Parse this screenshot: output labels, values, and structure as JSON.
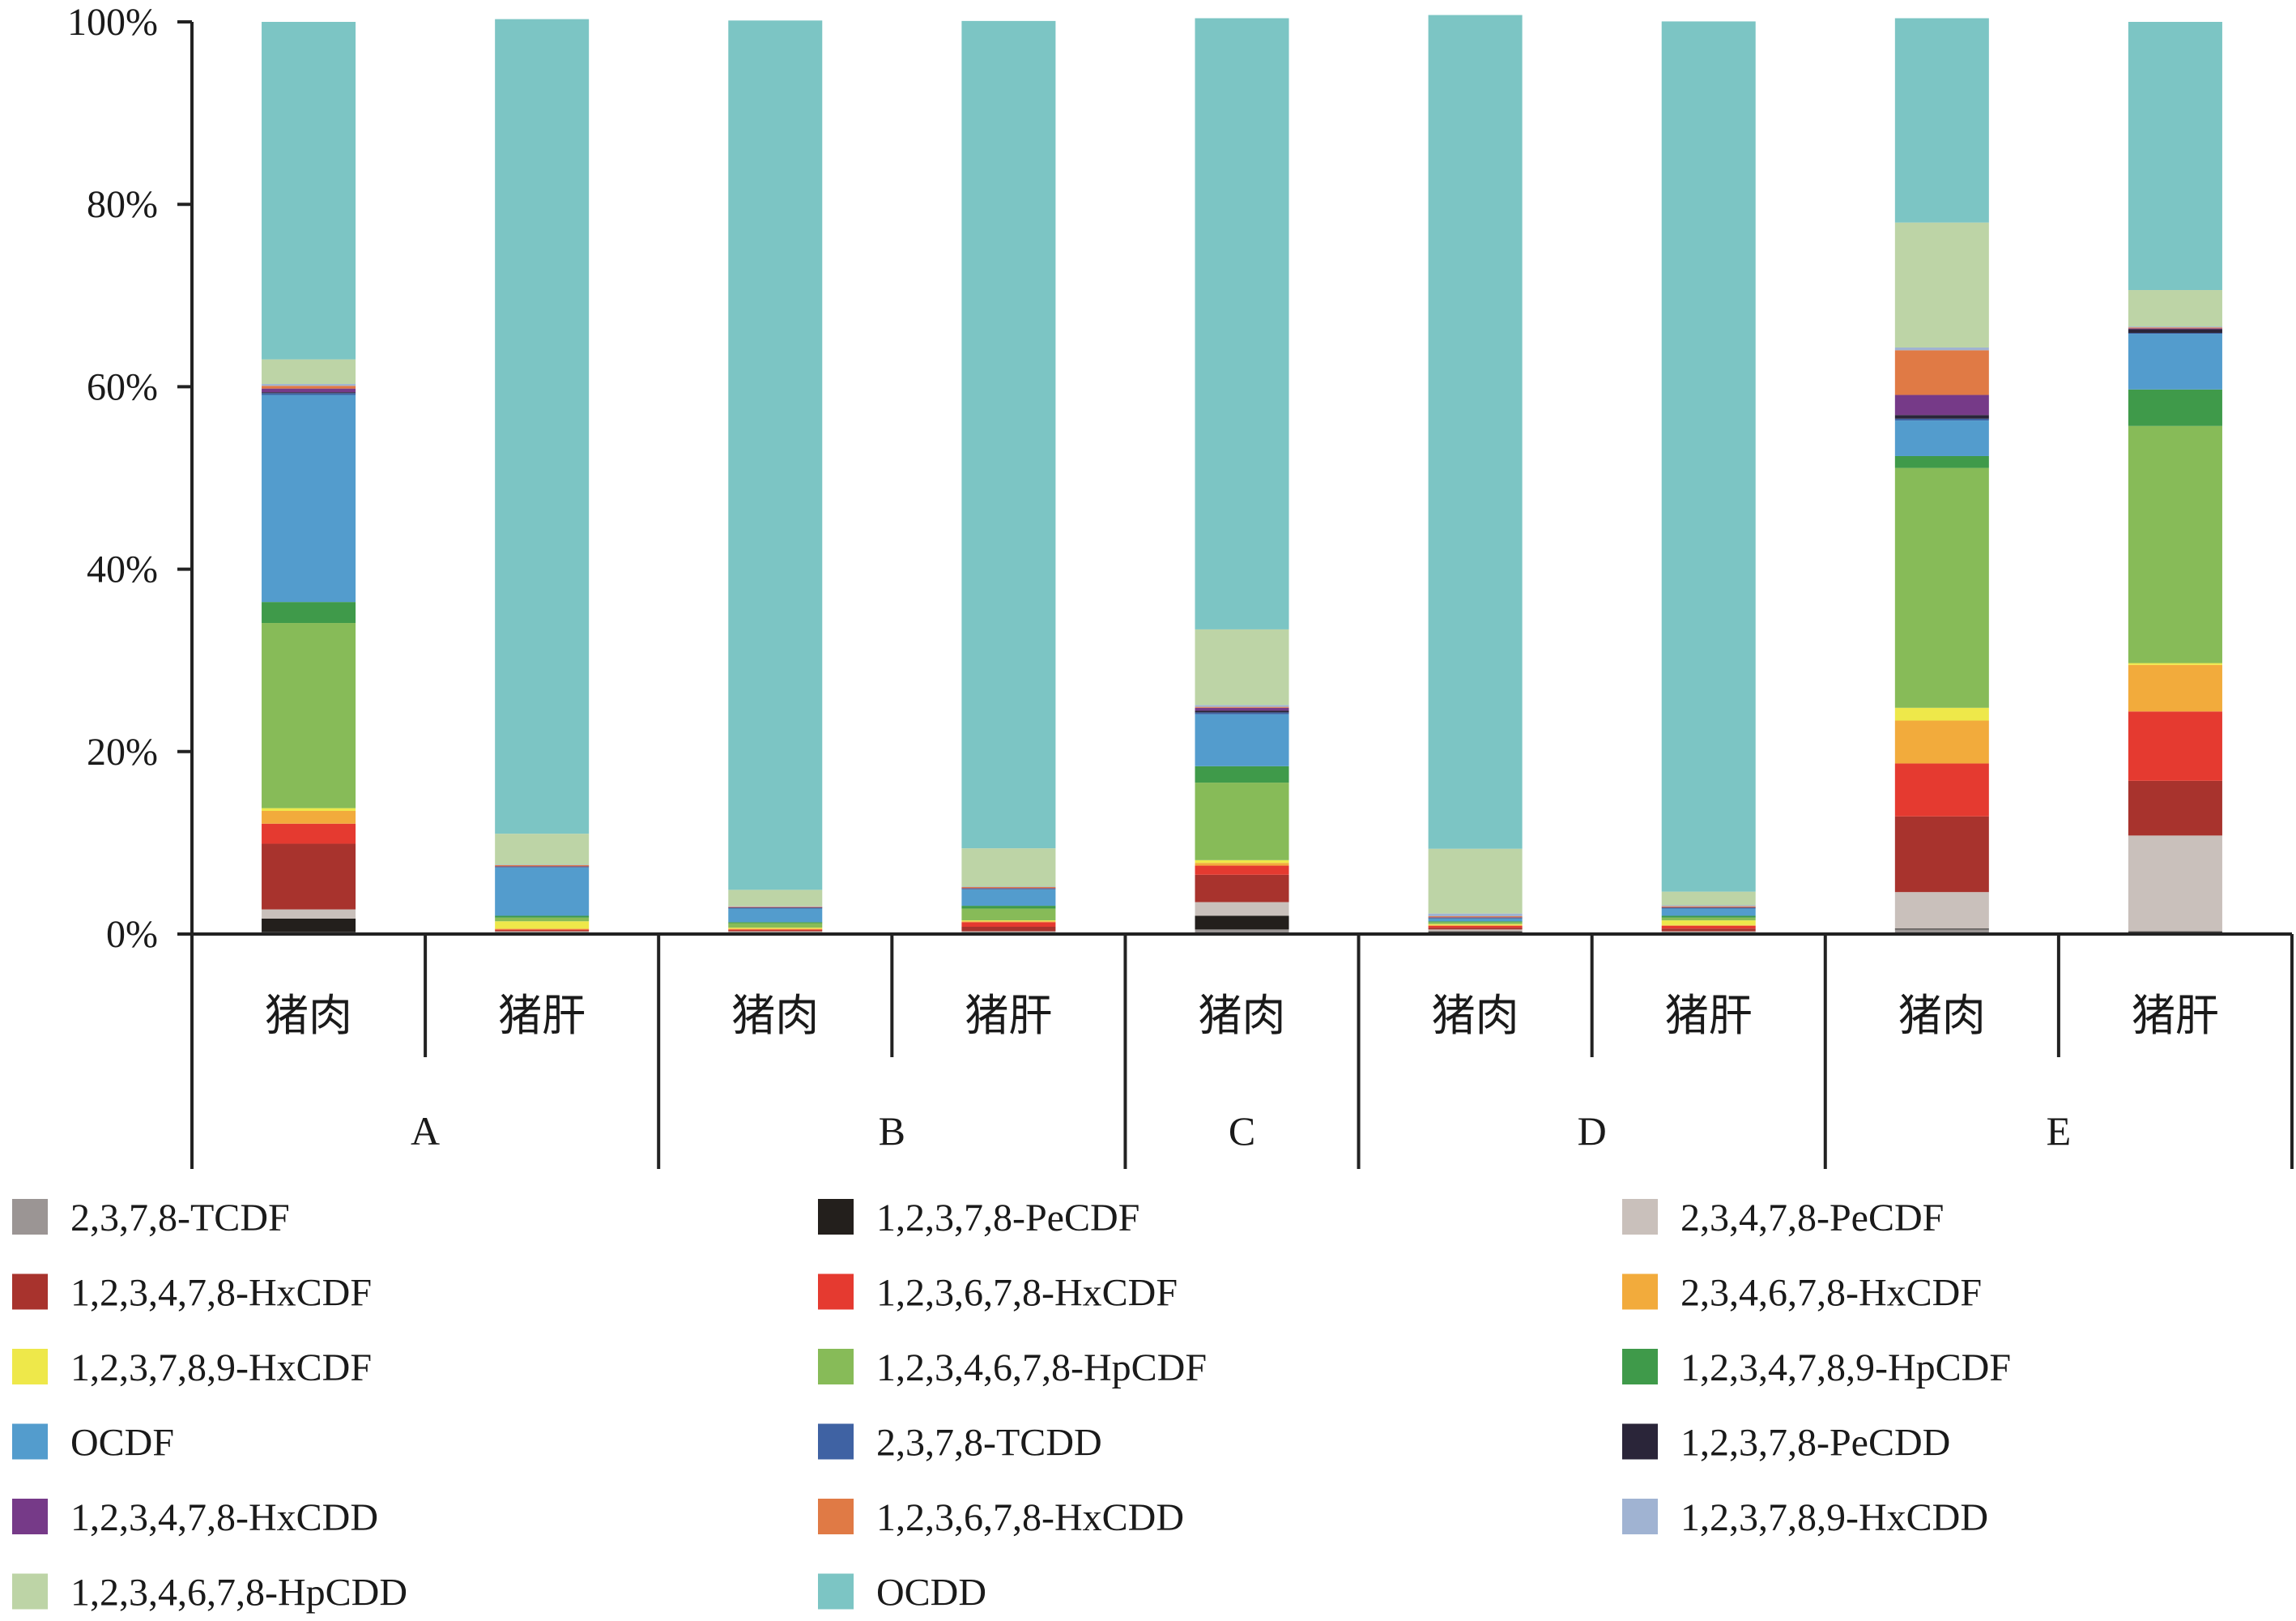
{
  "chart_data": {
    "type": "bar",
    "stacked": true,
    "percent": true,
    "title": "",
    "xlabel": "",
    "ylabel": "",
    "ylim": [
      0,
      100
    ],
    "yticks": [
      "0%",
      "20%",
      "40%",
      "60%",
      "80%",
      "100%"
    ],
    "grid": false,
    "legend_position": "bottom",
    "groups": [
      {
        "label": "A",
        "span": 2
      },
      {
        "label": "B",
        "span": 2
      },
      {
        "label": "C",
        "span": 1
      },
      {
        "label": "D",
        "span": 2
      },
      {
        "label": "E",
        "span": 2
      }
    ],
    "categories": [
      "猪肉",
      "猪肝",
      "猪肉",
      "猪肝",
      "猪肉",
      "猪肉",
      "猪肝",
      "猪肉",
      "猪肝"
    ],
    "series": [
      {
        "name": "2,3,7,8-TCDF",
        "color": "#9b9594",
        "values": [
          0.2,
          0.1,
          0.1,
          0.1,
          0.5,
          0.2,
          0.1,
          0.5,
          0.2
        ]
      },
      {
        "name": "1,2,3,7,8-PeCDF",
        "color": "#231f1c",
        "values": [
          1.5,
          0.1,
          0.1,
          0.1,
          1.5,
          0.1,
          0.1,
          0.1,
          0.1
        ]
      },
      {
        "name": "2,3,4,7,8-PeCDF",
        "color": "#c9c0bb",
        "values": [
          1.0,
          0.1,
          0.1,
          0.1,
          1.5,
          0.2,
          0.1,
          4.0,
          10.5
        ]
      },
      {
        "name": "1,2,3,4,7,8-HxCDF",
        "color": "#a8332d",
        "values": [
          7.2,
          0.1,
          0.1,
          0.5,
          3.0,
          0.2,
          0.3,
          8.3,
          6.0
        ]
      },
      {
        "name": "1,2,3,6,7,8-HxCDF",
        "color": "#e53a30",
        "values": [
          2.2,
          0.1,
          0.1,
          0.5,
          1.0,
          0.2,
          0.3,
          5.8,
          7.6
        ]
      },
      {
        "name": "2,3,4,6,7,8-HxCDF",
        "color": "#f2ab3c",
        "values": [
          1.4,
          0.1,
          0.1,
          0.1,
          0.3,
          0.1,
          0.1,
          4.7,
          5.1
        ]
      },
      {
        "name": "1,2,3,7,8,9-HxCDF",
        "color": "#eee84a",
        "values": [
          0.3,
          0.8,
          0.1,
          0.1,
          0.3,
          0.1,
          0.5,
          1.4,
          0.2
        ]
      },
      {
        "name": "1,2,3,4,6,7,8-HpCDF",
        "color": "#87bb58",
        "values": [
          20.3,
          0.4,
          0.5,
          1.3,
          8.5,
          0.2,
          0.3,
          26.3,
          26.0
        ]
      },
      {
        "name": "1,2,3,4,7,8,9-HpCDF",
        "color": "#3f9a4a",
        "values": [
          2.3,
          0.2,
          0.1,
          0.3,
          1.8,
          0.1,
          0.2,
          1.3,
          4.0
        ]
      },
      {
        "name": "OCDF",
        "color": "#539ccd",
        "values": [
          22.7,
          5.3,
          1.5,
          1.8,
          5.7,
          0.3,
          0.8,
          3.9,
          6.1
        ]
      },
      {
        "name": "2,3,7,8-TCDD",
        "color": "#3f62a3",
        "values": [
          0.2,
          0.05,
          0.05,
          0.05,
          0.2,
          0.05,
          0.05,
          0.2,
          0.1
        ]
      },
      {
        "name": "1,2,3,7,8-PeCDD",
        "color": "#2a2539",
        "values": [
          0.1,
          0.05,
          0.05,
          0.05,
          0.2,
          0.05,
          0.05,
          0.4,
          0.4
        ]
      },
      {
        "name": "1,2,3,4,7,8-HxCDD",
        "color": "#763a88",
        "values": [
          0.4,
          0.05,
          0.05,
          0.05,
          0.3,
          0.05,
          0.05,
          2.2,
          0.1
        ]
      },
      {
        "name": "1,2,3,6,7,8-HxCDD",
        "color": "#e07a45",
        "values": [
          0.3,
          0.1,
          0.05,
          0.1,
          0.1,
          0.1,
          0.1,
          4.9,
          0.1
        ]
      },
      {
        "name": "1,2,3,7,8,9-HxCDD",
        "color": "#a0b3d2",
        "values": [
          0.2,
          0.05,
          0.05,
          0.05,
          0.2,
          0.3,
          0.1,
          0.3,
          0.1
        ]
      },
      {
        "name": "1,2,3,4,6,7,8-HpCDD",
        "color": "#bdd4a6",
        "values": [
          2.7,
          3.4,
          1.8,
          4.2,
          8.3,
          7.1,
          1.5,
          13.7,
          4.0
        ]
      },
      {
        "name": "OCDD",
        "color": "#7cc5c4",
        "values": [
          37.0,
          89.3,
          95.3,
          90.7,
          67.0,
          91.4,
          95.4,
          22.4,
          29.4
        ]
      }
    ]
  }
}
